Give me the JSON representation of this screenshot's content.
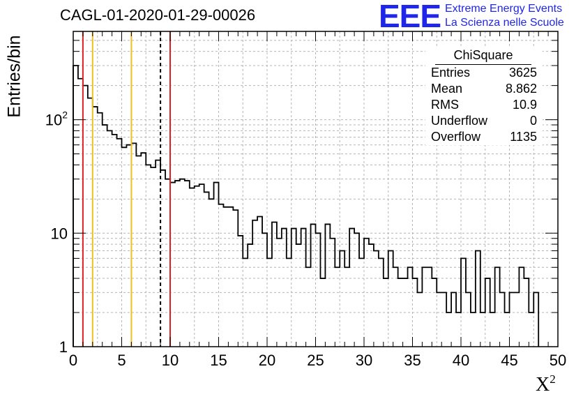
{
  "header": {
    "run_title": "CAGL-01-2020-01-29-00026",
    "logo_text": "EEE",
    "logo_line1": "Extreme Energy Events",
    "logo_line2": "La Scienza nelle Scuole"
  },
  "stats": {
    "title": "ChiSquare",
    "rows": [
      {
        "label": "Entries",
        "value": "3625"
      },
      {
        "label": "Mean",
        "value": "8.862"
      },
      {
        "label": "RMS",
        "value": "10.9"
      },
      {
        "label": "Underflow",
        "value": "0"
      },
      {
        "label": "Overflow",
        "value": "1135"
      }
    ]
  },
  "chart_data": {
    "type": "histogram",
    "ylabel": "Entries/bin",
    "xlabel_base": "X",
    "xlabel_exp": "2",
    "xlim": [
      0,
      50
    ],
    "ylim": [
      1,
      600
    ],
    "yscale": "log",
    "grid": true,
    "bin_width": 0.5,
    "x_ticks": [
      "0",
      "5",
      "10",
      "15",
      "20",
      "25",
      "30",
      "35",
      "40",
      "45",
      "50"
    ],
    "y_ticks": [
      {
        "value": 1,
        "label": "1"
      },
      {
        "value": 10,
        "label": "10"
      },
      {
        "value": 100,
        "label": "10",
        "exp": "2"
      }
    ],
    "values": [
      300,
      230,
      200,
      155,
      130,
      115,
      90,
      80,
      74,
      68,
      57,
      60,
      62,
      48,
      51,
      40,
      38,
      44,
      36,
      30,
      28,
      29,
      30,
      29,
      25,
      26,
      27,
      23,
      20,
      28,
      18,
      17,
      17,
      16,
      9.5,
      6,
      8,
      13,
      14,
      10,
      6,
      12.5,
      9,
      11,
      6,
      11,
      8,
      11,
      5,
      12,
      10,
      4,
      12,
      9,
      5,
      7,
      5,
      11,
      10,
      6,
      9,
      8,
      7,
      6,
      4,
      7,
      5,
      4,
      4,
      5,
      4,
      3,
      5,
      5,
      4,
      3,
      3,
      2,
      3,
      2,
      6,
      3,
      2,
      7,
      2,
      4,
      2,
      5,
      3,
      2,
      3,
      3,
      5,
      4,
      2,
      3
    ]
  },
  "markers": [
    {
      "x": 1,
      "color": "#e02020",
      "style": "solid"
    },
    {
      "x": 2,
      "color": "#f0c020",
      "style": "solid"
    },
    {
      "x": 6,
      "color": "#f0c020",
      "style": "solid"
    },
    {
      "x": 9,
      "color": "#000000",
      "style": "dashed"
    },
    {
      "x": 10,
      "color": "#e02020",
      "style": "solid"
    }
  ]
}
